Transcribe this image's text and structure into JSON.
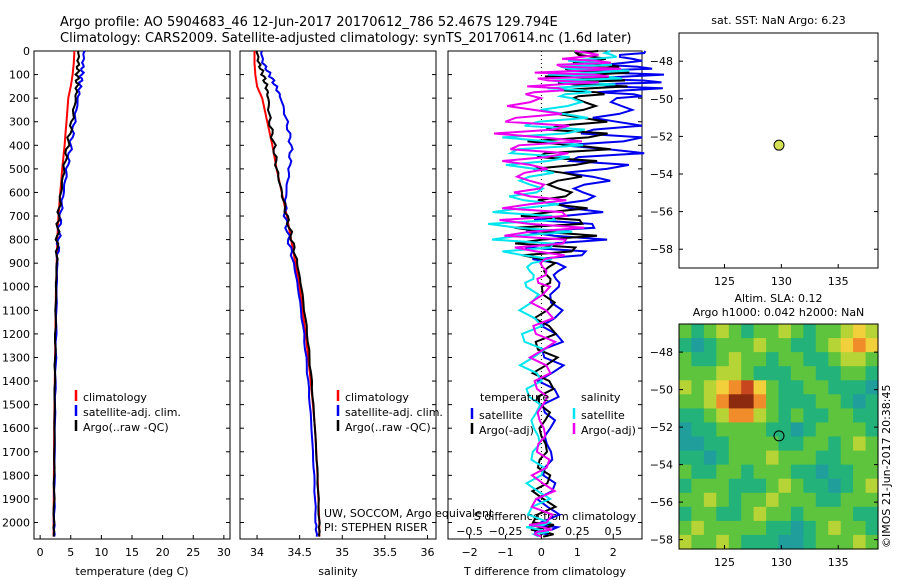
{
  "header": {
    "line1": "Argo profile: AO 5904683_46 12-Jun-2017 20170612_786 52.467S 129.794E",
    "line2": "Climatology: CARS2009. Satellite-adjusted climatology: synTS_20170614.nc (1.6d later)"
  },
  "credit": "©IMOS 21-Jun-2017 20:38:45",
  "colors": {
    "climatology": "#ff0000",
    "satellite": "#0000ee",
    "argo": "#000000",
    "salinity_satellite": "#00e5ee",
    "salinity_argo": "#ee00ee",
    "marker_fill": "#d4e157"
  },
  "chart_data": [
    {
      "type": "line",
      "id": "temperature",
      "xlabel": "temperature (deg C)",
      "xlim": [
        -1,
        31
      ],
      "xticks": [
        0,
        5,
        10,
        15,
        20,
        25,
        30
      ],
      "ylim": [
        2070,
        0
      ],
      "yticks": [
        0,
        100,
        200,
        300,
        400,
        500,
        600,
        700,
        800,
        900,
        1000,
        1100,
        1200,
        1300,
        1400,
        1500,
        1600,
        1700,
        1800,
        1900,
        2000
      ],
      "depth": [
        0,
        50,
        100,
        150,
        200,
        300,
        400,
        500,
        600,
        700,
        800,
        900,
        1000,
        1200,
        1400,
        1600,
        1800,
        2000,
        2060
      ],
      "series": [
        {
          "name": "climatology",
          "color": "#ff0000",
          "values": [
            5.6,
            5.5,
            5.3,
            5.0,
            4.6,
            4.3,
            4.0,
            3.6,
            3.3,
            3.0,
            2.8,
            2.7,
            2.6,
            2.5,
            2.4,
            2.3,
            2.25,
            2.2,
            2.2
          ]
        },
        {
          "name": "satellite-adj. clim.",
          "color": "#0000ee",
          "values": [
            7.2,
            7.0,
            6.8,
            6.5,
            6.2,
            5.6,
            5.0,
            4.4,
            3.8,
            3.3,
            3.0,
            2.8,
            2.7,
            2.6,
            2.5,
            2.4,
            2.35,
            2.3,
            2.3
          ]
        },
        {
          "name": "Argo(..raw -QC)",
          "color": "#000000",
          "values": [
            6.3,
            6.2,
            6.1,
            6.0,
            5.8,
            5.2,
            4.5,
            3.9,
            3.4,
            3.0,
            2.8,
            2.7,
            2.6,
            2.5,
            2.4,
            2.35,
            2.3,
            2.25,
            2.25
          ]
        }
      ],
      "legend": [
        "climatology",
        "satellite-adj. clim.",
        "Argo(..raw -QC)"
      ]
    },
    {
      "type": "line",
      "id": "salinity",
      "xlabel": "salinity",
      "xlim": [
        33.8,
        36.1
      ],
      "xticks": [
        34,
        34.5,
        35,
        35.5,
        36
      ],
      "xticklabels": [
        "34",
        "34.5",
        "35",
        "35.5",
        "36"
      ],
      "ylim": [
        2070,
        0
      ],
      "depth": [
        0,
        50,
        100,
        150,
        200,
        300,
        400,
        500,
        600,
        700,
        800,
        900,
        1000,
        1200,
        1400,
        1600,
        1800,
        2000,
        2060
      ],
      "series": [
        {
          "name": "climatology",
          "color": "#ff0000",
          "values": [
            33.97,
            33.97,
            33.98,
            34.0,
            34.06,
            34.12,
            34.18,
            34.23,
            34.29,
            34.35,
            34.4,
            34.45,
            34.5,
            34.57,
            34.63,
            34.68,
            34.71,
            34.73,
            34.73
          ]
        },
        {
          "name": "satellite-adj. clim.",
          "color": "#0000ee",
          "values": [
            34.05,
            34.07,
            34.15,
            34.22,
            34.28,
            34.35,
            34.4,
            34.38,
            34.34,
            34.33,
            34.37,
            34.43,
            34.48,
            34.55,
            34.6,
            34.64,
            34.67,
            34.69,
            34.7
          ]
        },
        {
          "name": "Argo(..raw -QC)",
          "color": "#000000",
          "values": [
            34.0,
            34.02,
            34.07,
            34.11,
            34.13,
            34.15,
            34.2,
            34.23,
            34.29,
            34.35,
            34.41,
            34.47,
            34.52,
            34.59,
            34.64,
            34.68,
            34.71,
            34.73,
            34.73
          ]
        }
      ],
      "legend": [
        "climatology",
        "satellite-adj. clim.",
        "Argo(..raw -QC)"
      ],
      "annotations": [
        "UW, SOCCOM, Argo equivalent",
        "PI: STEPHEN RISER"
      ]
    },
    {
      "type": "line",
      "id": "differences",
      "xlabel": "T difference from climatology",
      "xlabel_top": "S difference from climatology",
      "xlim": [
        -2.6,
        2.8
      ],
      "xticks": [
        -2,
        -1,
        0,
        1,
        2
      ],
      "xticks_top": [
        -0.5,
        -0.25,
        0,
        0.25,
        0.5
      ],
      "xticklabels_top": [
        "−0.5",
        "−0.25",
        "0",
        "0.25",
        "0.5"
      ],
      "ylim": [
        2070,
        0
      ],
      "depth": [
        0,
        50,
        100,
        150,
        200,
        300,
        400,
        500,
        600,
        700,
        800,
        900,
        1000,
        1200,
        1400,
        1600,
        1800,
        2000,
        2060
      ],
      "series": [
        {
          "name": "temperature satellite",
          "color": "#0000ee",
          "values": [
            2.5,
            2.4,
            2.3,
            2.4,
            2.3,
            2.0,
            1.8,
            1.5,
            1.2,
            0.8,
            0.6,
            0.5,
            0.4,
            0.3,
            0.25,
            0.2,
            0.2,
            0.15,
            0.15
          ]
        },
        {
          "name": "temperature Argo(-adj)",
          "color": "#000000",
          "values": [
            1.2,
            1.5,
            1.3,
            1.4,
            1.2,
            1.0,
            0.8,
            0.6,
            0.5,
            0.4,
            0.3,
            0.2,
            0.15,
            0.1,
            0.1,
            0.05,
            0.05,
            0.05,
            0.05
          ]
        },
        {
          "name": "salinity satellite",
          "color": "#00e5ee",
          "values": [
            0.55,
            0.3,
            0.35,
            0.25,
            0.2,
            0.1,
            0.0,
            -0.05,
            -0.08,
            -0.1,
            -0.09,
            -0.07,
            -0.08,
            -0.07,
            -0.06,
            -0.04,
            -0.03,
            -0.02,
            -0.02
          ]
        },
        {
          "name": "salinity Argo(-adj)",
          "color": "#ee00ee",
          "values": [
            0.3,
            0.3,
            0.25,
            0.1,
            -0.1,
            -0.05,
            0.0,
            -0.1,
            -0.05,
            -0.02,
            0.0,
            0.02,
            0.0,
            0.01,
            0.0,
            0.0,
            0.01,
            0.0,
            0.0
          ]
        }
      ],
      "legend_headers": [
        "temperature",
        "salinity"
      ],
      "legend": [
        "satellite",
        "Argo(-adj)",
        "satellite",
        "Argo(-adj)"
      ]
    },
    {
      "type": "scatter",
      "id": "sst-map",
      "title": "sat. SST: NaN Argo: 6.23",
      "xlim": [
        121,
        138.5
      ],
      "ylim": [
        -59,
        -46.5
      ],
      "xticks": [
        125,
        130,
        135
      ],
      "yticks": [
        -48,
        -50,
        -52,
        -54,
        -56,
        -58
      ],
      "points": [
        {
          "x": 129.794,
          "y": -52.467
        }
      ]
    },
    {
      "type": "heatmap",
      "id": "sla-map",
      "title": "Altim. SLA: 0.12",
      "subtitle": "Argo h1000: 0.042 h2000: NaN",
      "xlim": [
        121,
        138.5
      ],
      "ylim": [
        -58.5,
        -46.5
      ],
      "xticks": [
        125,
        130,
        135
      ],
      "yticks": [
        -48,
        -50,
        -52,
        -54,
        -56,
        -58
      ],
      "points": [
        {
          "x": 129.794,
          "y": -52.467
        }
      ],
      "colorscale": [
        "#1f9e9b",
        "#23b27a",
        "#5ec43e",
        "#b7d437",
        "#f2d03b",
        "#f08c2a",
        "#c8461e",
        "#8c2a10"
      ],
      "grid": [
        [
          2,
          1,
          2,
          3,
          2,
          1,
          2,
          2,
          3,
          2,
          1,
          2,
          2,
          3,
          4,
          3
        ],
        [
          1,
          0,
          1,
          2,
          2,
          2,
          3,
          2,
          2,
          1,
          1,
          2,
          3,
          4,
          5,
          4
        ],
        [
          2,
          1,
          1,
          2,
          3,
          2,
          2,
          1,
          2,
          2,
          1,
          1,
          2,
          3,
          3,
          2
        ],
        [
          2,
          2,
          2,
          3,
          3,
          2,
          1,
          1,
          1,
          2,
          2,
          1,
          1,
          2,
          2,
          1
        ],
        [
          3,
          2,
          3,
          4,
          5,
          6,
          4,
          2,
          1,
          1,
          2,
          2,
          1,
          1,
          1,
          0
        ],
        [
          2,
          2,
          3,
          5,
          7,
          7,
          5,
          2,
          1,
          1,
          1,
          2,
          2,
          1,
          0,
          1
        ],
        [
          1,
          1,
          2,
          3,
          5,
          5,
          3,
          2,
          1,
          2,
          1,
          1,
          2,
          2,
          1,
          1
        ],
        [
          0,
          1,
          1,
          2,
          2,
          2,
          2,
          1,
          1,
          0,
          1,
          2,
          2,
          2,
          2,
          1
        ],
        [
          0,
          0,
          1,
          1,
          2,
          2,
          2,
          2,
          1,
          1,
          2,
          2,
          1,
          2,
          3,
          2
        ],
        [
          1,
          1,
          0,
          1,
          2,
          2,
          2,
          3,
          2,
          2,
          2,
          1,
          1,
          2,
          2,
          2
        ],
        [
          2,
          1,
          1,
          2,
          2,
          1,
          2,
          2,
          2,
          1,
          1,
          0,
          1,
          1,
          2,
          2
        ],
        [
          1,
          2,
          2,
          2,
          1,
          1,
          1,
          2,
          3,
          2,
          1,
          1,
          0,
          1,
          2,
          3
        ],
        [
          2,
          2,
          3,
          2,
          1,
          2,
          2,
          3,
          2,
          2,
          2,
          1,
          1,
          2,
          2,
          2
        ],
        [
          1,
          2,
          2,
          1,
          1,
          2,
          3,
          2,
          2,
          1,
          2,
          2,
          2,
          2,
          1,
          1
        ],
        [
          2,
          3,
          2,
          2,
          2,
          2,
          2,
          1,
          1,
          0,
          1,
          2,
          3,
          2,
          2,
          1
        ],
        [
          3,
          2,
          2,
          3,
          2,
          1,
          1,
          1,
          0,
          0,
          1,
          2,
          2,
          2,
          3,
          2
        ]
      ]
    }
  ]
}
